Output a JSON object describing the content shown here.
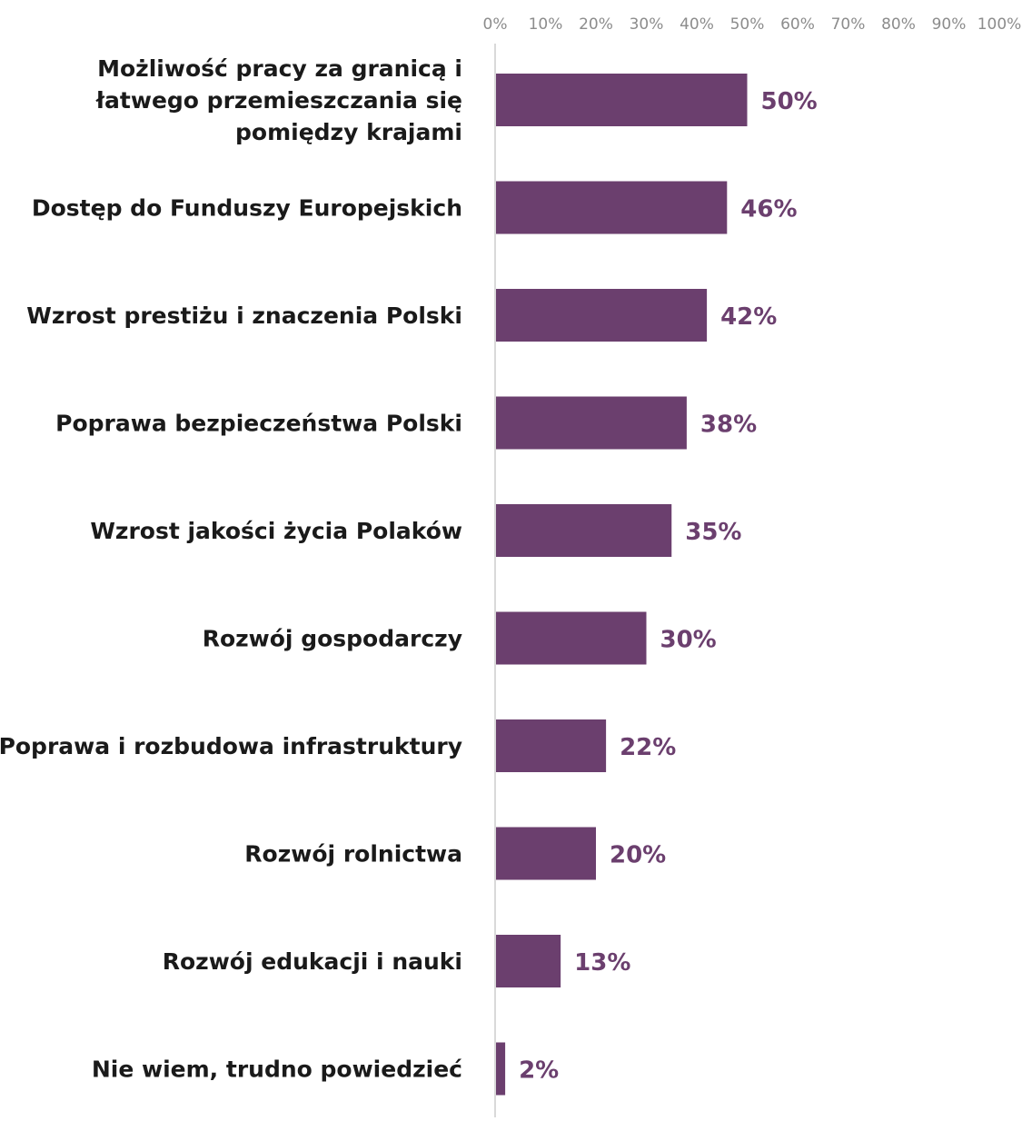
{
  "chart_data": {
    "type": "bar",
    "orientation": "horizontal",
    "title": "",
    "xlabel": "",
    "ylabel": "",
    "xlim": [
      0,
      100
    ],
    "x_ticks": [
      "0%",
      "10%",
      "20%",
      "30%",
      "40%",
      "50%",
      "60%",
      "70%",
      "80%",
      "90%",
      "100%"
    ],
    "x_axis_position": "top",
    "grid": false,
    "legend": "none",
    "bar_color": "#6b3f6e",
    "label_color": "#6b3f6e",
    "categories": [
      [
        "Możliwość pracy za granicą i",
        "łatwego przemieszczania się",
        "pomiędzy krajami"
      ],
      [
        "Dostęp do Funduszy Europejskich"
      ],
      [
        "Wzrost prestiżu i znaczenia Polski"
      ],
      [
        "Poprawa bezpieczeństwa Polski"
      ],
      [
        "Wzrost jakości życia Polaków"
      ],
      [
        "Rozwój gospodarczy"
      ],
      [
        "Poprawa i rozbudowa infrastruktury"
      ],
      [
        "Rozwój rolnictwa"
      ],
      [
        "Rozwój edukacji i nauki"
      ],
      [
        "Nie wiem, trudno powiedzieć"
      ]
    ],
    "values": [
      50,
      46,
      42,
      38,
      35,
      30,
      22,
      20,
      13,
      2
    ],
    "value_labels": [
      "50%",
      "46%",
      "42%",
      "38%",
      "35%",
      "30%",
      "22%",
      "20%",
      "13%",
      "2%"
    ]
  }
}
